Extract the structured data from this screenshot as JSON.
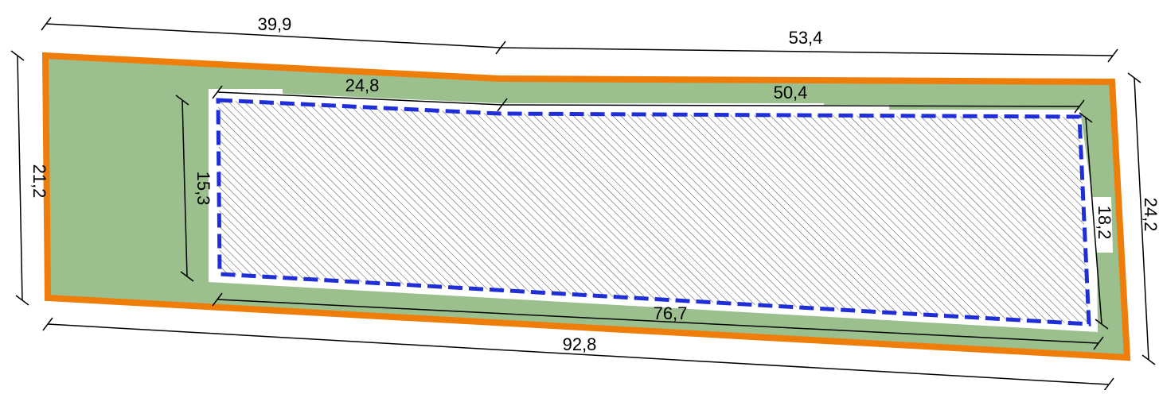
{
  "colors": {
    "background": "#ffffff",
    "lot_fill": "#9bbf8d",
    "lot_border": "#ef7d0a",
    "setback_fill": "#ffffff",
    "building_outline": "#1f2ed6",
    "hatch": "#555555",
    "dimension_line": "#000000"
  },
  "diagram": {
    "lot": {
      "dimensions": {
        "top_left": "39,9",
        "top_right": "53,4",
        "left": "21,2",
        "right": "24,2",
        "bottom": "92,8"
      }
    },
    "building": {
      "dimensions": {
        "top_left": "24,8",
        "top_right": "50,4",
        "left": "15,3",
        "right": "18,2",
        "bottom": "76,7"
      }
    }
  }
}
